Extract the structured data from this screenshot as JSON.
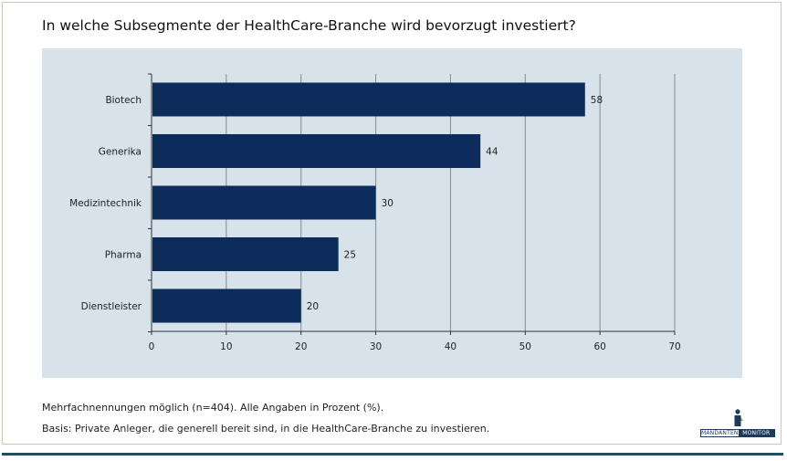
{
  "title": "In welche Subsegmente der HealthCare-Branche wird bevorzugt investiert?",
  "notes": {
    "line1": "Mehrfachnennungen möglich (n=404). Alle Angaben in Prozent (%).",
    "line2": "Basis: Private Anleger, die  generell bereit sind, in die HealthCare-Branche zu investieren."
  },
  "logo": {
    "left": "MANDANTEN",
    "right": "MONITOR"
  },
  "colors": {
    "bar": "#0c2d5c",
    "plot_bg": "#d7e2ea",
    "grid": "#8a8a8a",
    "rule": "#1e4d5c"
  },
  "chart_data": {
    "type": "bar",
    "orientation": "horizontal",
    "categories": [
      "Biotech",
      "Generika",
      "Medizintechnik",
      "Pharma",
      "Dienstleister"
    ],
    "values": [
      58,
      44,
      30,
      25,
      20
    ],
    "xlim": [
      0,
      70
    ],
    "xticks": [
      0,
      10,
      20,
      30,
      40,
      50,
      60,
      70
    ],
    "grid": true,
    "data_labels": true
  }
}
